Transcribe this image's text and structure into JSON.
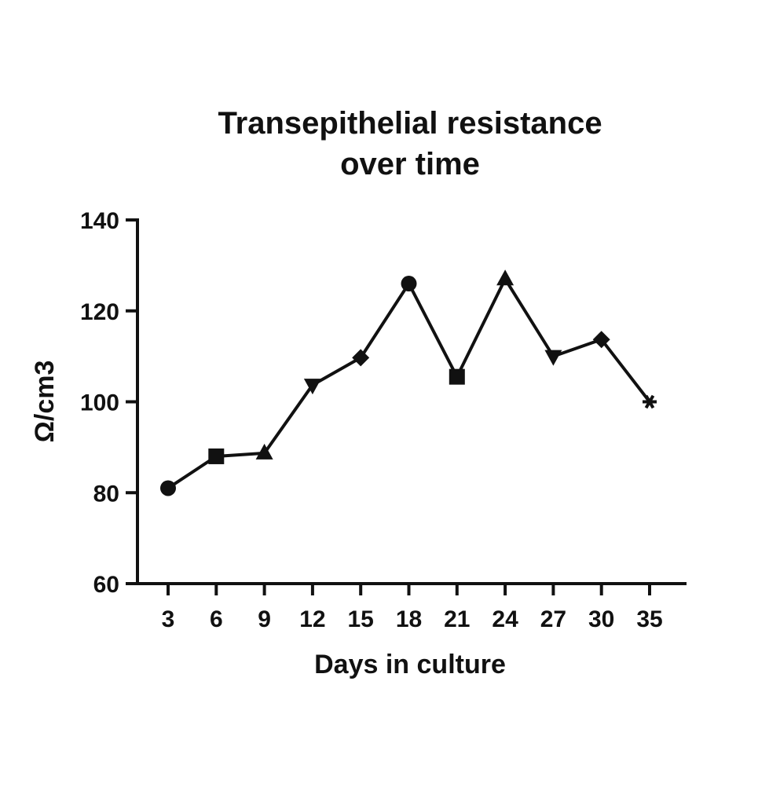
{
  "chart_data": {
    "type": "line",
    "title_lines": [
      "Transepithelial resistance",
      "over time"
    ],
    "xlabel": "Days in culture",
    "ylabel": "Ω/cm3",
    "categories": [
      "3",
      "6",
      "9",
      "12",
      "15",
      "18",
      "21",
      "24",
      "27",
      "30",
      "35"
    ],
    "series": [
      {
        "values": [
          81,
          88,
          88.7,
          103.7,
          109.7,
          126,
          105.5,
          127,
          110,
          113.7,
          100
        ],
        "markers": [
          "circle",
          "square",
          "triangle-up",
          "triangle-down",
          "diamond",
          "circle",
          "square",
          "triangle-up",
          "triangle-down",
          "diamond",
          "asterisk"
        ]
      }
    ],
    "yticks": [
      "60",
      "80",
      "100",
      "120",
      "140"
    ],
    "ylim": [
      60,
      140
    ],
    "grid": false,
    "legend": false,
    "color": "#111111"
  }
}
